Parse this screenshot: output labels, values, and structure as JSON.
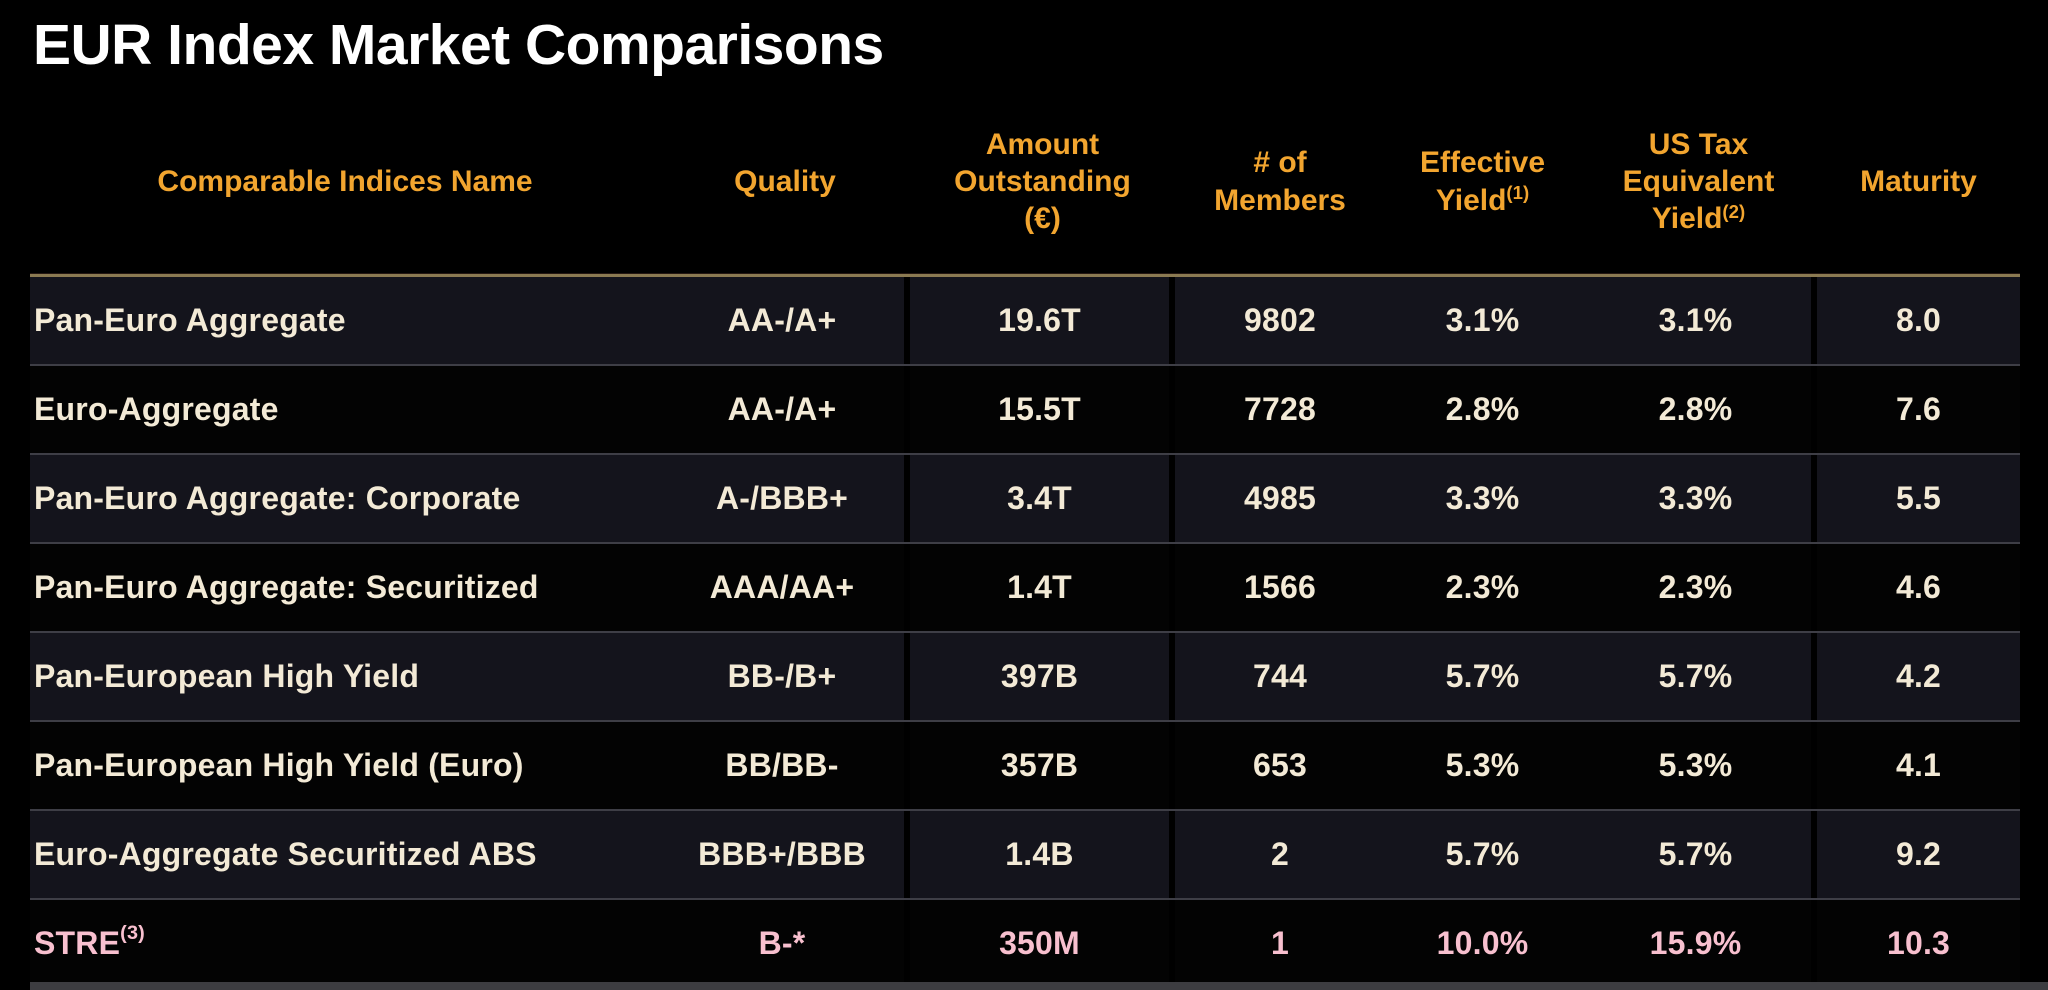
{
  "title": "EUR Index Market Comparisons",
  "colors": {
    "header_text": "#F2A52F",
    "body_text": "#F3EAD6",
    "highlight_text": "#F8C0CF",
    "divider_line": "#8B7A52",
    "row_alt_background": "#14141C",
    "row_background": "#030303",
    "page_background": "#000000"
  },
  "table": {
    "columns": [
      {
        "label": "Comparable Indices Name"
      },
      {
        "label": "Quality"
      },
      {
        "label": "Amount Outstanding (€)"
      },
      {
        "label": "# of Members"
      },
      {
        "label": "Effective Yield",
        "sup": "(1)"
      },
      {
        "label": "US Tax Equivalent Yield",
        "sup": "(2)"
      },
      {
        "label": "Maturity"
      }
    ],
    "rows": [
      {
        "cells": [
          "Pan-Euro Aggregate",
          "AA-/A+",
          "19.6T",
          "9802",
          "3.1%",
          "3.1%",
          "8.0"
        ]
      },
      {
        "cells": [
          "Euro-Aggregate",
          "AA-/A+",
          "15.5T",
          "7728",
          "2.8%",
          "2.8%",
          "7.6"
        ]
      },
      {
        "cells": [
          "Pan-Euro Aggregate: Corporate",
          "A-/BBB+",
          "3.4T",
          "4985",
          "3.3%",
          "3.3%",
          "5.5"
        ]
      },
      {
        "cells": [
          "Pan-Euro Aggregate: Securitized",
          "AAA/AA+",
          "1.4T",
          "1566",
          "2.3%",
          "2.3%",
          "4.6"
        ]
      },
      {
        "cells": [
          "Pan-European High Yield",
          "BB-/B+",
          "397B",
          "744",
          "5.7%",
          "5.7%",
          "4.2"
        ]
      },
      {
        "cells": [
          "Pan-European High Yield (Euro)",
          "BB/BB-",
          "357B",
          "653",
          "5.3%",
          "5.3%",
          "4.1"
        ]
      },
      {
        "cells": [
          "Euro-Aggregate Securitized ABS",
          "BBB+/BBB",
          "1.4B",
          "2",
          "5.7%",
          "5.7%",
          "9.2"
        ]
      },
      {
        "cells": [
          "STRE",
          "B-*",
          "350M",
          "1",
          "10.0%",
          "15.9%",
          "10.3"
        ],
        "name_sup": "(3)",
        "highlight": true
      }
    ]
  }
}
